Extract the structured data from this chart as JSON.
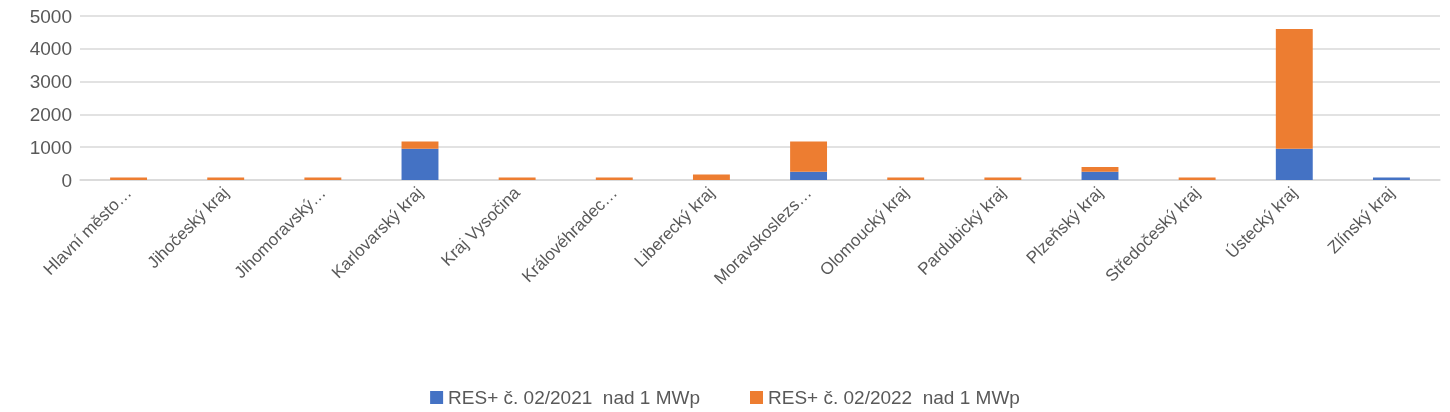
{
  "chart_data": {
    "type": "bar",
    "stacked": true,
    "categories": [
      "Hlavní město…",
      "Jihočeský kraj",
      "Jihomoravský…",
      "Karlovarský kraj",
      "Kraj Vysočina",
      "Královéhradec…",
      "Liberecký kraj",
      "Moravskoslezs…",
      "Olomoucký kraj",
      "Pardubický kraj",
      "Plzeňský kraj",
      "Středočeský kraj",
      "Ústecký kraj",
      "Zlínský kraj"
    ],
    "series": [
      {
        "name": "RES+ č. 02/2021  nad 1 MWp",
        "color": "#4472c4",
        "values": [
          0,
          0,
          0,
          950,
          0,
          0,
          0,
          250,
          0,
          0,
          250,
          0,
          950,
          80
        ]
      },
      {
        "name": "RES+ č. 02/2022  nad 1 MWp",
        "color": "#ed7d31",
        "values": [
          80,
          80,
          80,
          220,
          80,
          80,
          170,
          920,
          80,
          80,
          150,
          80,
          3650,
          0
        ]
      }
    ],
    "ylim": [
      0,
      5000
    ],
    "yticks": [
      0,
      1000,
      2000,
      3000,
      4000,
      5000
    ],
    "grid": "y",
    "legend": "bottom"
  }
}
